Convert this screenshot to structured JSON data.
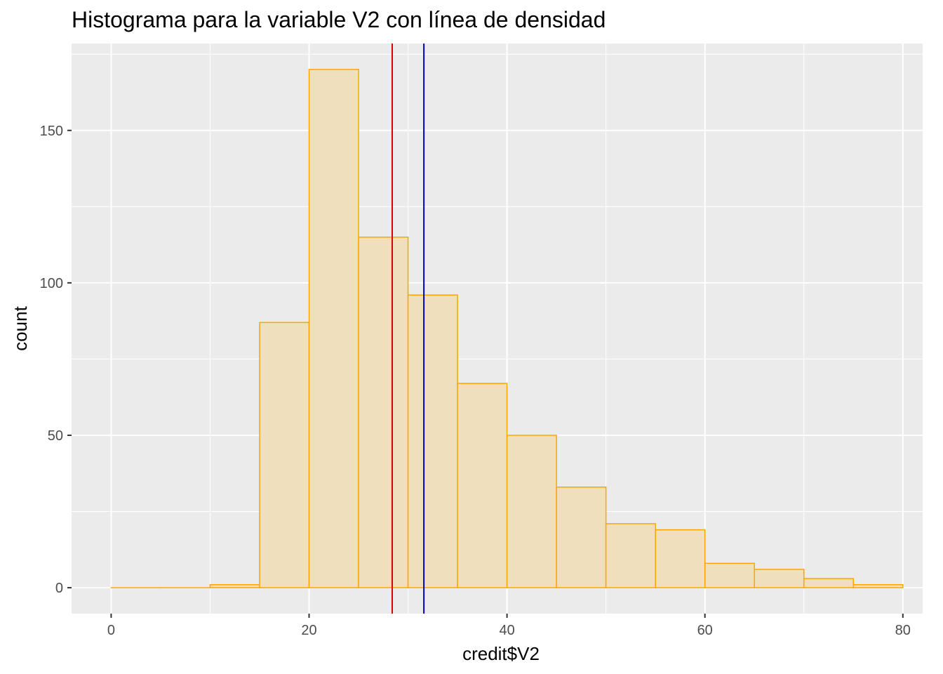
{
  "chart_data": {
    "type": "bar",
    "title": "Histograma para la variable V2 con línea de densidad",
    "xlabel": "credit$V2",
    "ylabel": "count",
    "xlim": [
      -4,
      82
    ],
    "ylim": [
      -8.5,
      178.5
    ],
    "x_ticks": [
      0,
      20,
      40,
      60,
      80
    ],
    "y_ticks": [
      0,
      50,
      100,
      150
    ],
    "grid": true,
    "bins": [
      {
        "x0": 0,
        "x1": 5,
        "count": 0
      },
      {
        "x0": 5,
        "x1": 10,
        "count": 0
      },
      {
        "x0": 10,
        "x1": 15,
        "count": 1
      },
      {
        "x0": 15,
        "x1": 20,
        "count": 87
      },
      {
        "x0": 20,
        "x1": 25,
        "count": 170
      },
      {
        "x0": 25,
        "x1": 30,
        "count": 115
      },
      {
        "x0": 30,
        "x1": 35,
        "count": 96
      },
      {
        "x0": 35,
        "x1": 40,
        "count": 67
      },
      {
        "x0": 40,
        "x1": 45,
        "count": 50
      },
      {
        "x0": 45,
        "x1": 50,
        "count": 33
      },
      {
        "x0": 50,
        "x1": 55,
        "count": 21
      },
      {
        "x0": 55,
        "x1": 60,
        "count": 19
      },
      {
        "x0": 60,
        "x1": 65,
        "count": 8
      },
      {
        "x0": 65,
        "x1": 70,
        "count": 6
      },
      {
        "x0": 70,
        "x1": 75,
        "count": 3
      },
      {
        "x0": 75,
        "x1": 80,
        "count": 1
      }
    ],
    "bar_fill": "#f0dfbc",
    "bar_stroke": "#ffa500",
    "vlines": [
      {
        "x": 28.4,
        "color": "#dd0000"
      },
      {
        "x": 31.6,
        "color": "#0000bb"
      }
    ],
    "panel_background": "#ebebeb",
    "grid_color": "#ffffff"
  }
}
